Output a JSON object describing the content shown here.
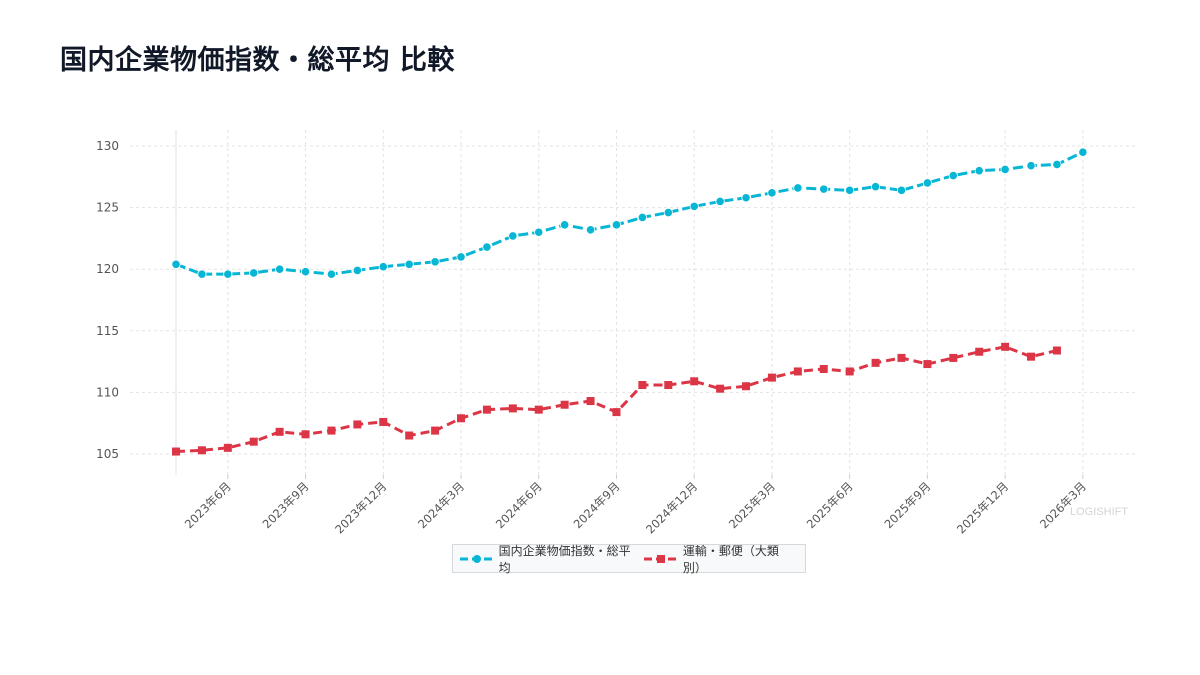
{
  "title": "国内企業物価指数・総平均 比較",
  "watermark": "LOGISHIFT",
  "chart_data": {
    "type": "line",
    "title": "国内企業物価指数・総平均 比較",
    "xlabel": "",
    "ylabel": "",
    "ylim": [
      103.5,
      131.3
    ],
    "yticks": [
      105,
      110,
      115,
      120,
      125,
      130
    ],
    "grid": true,
    "legend_position": "bottom",
    "x": [
      "2023-04",
      "2023-05",
      "2023-06",
      "2023-07",
      "2023-08",
      "2023-09",
      "2023-10",
      "2023-11",
      "2023-12",
      "2024-01",
      "2024-02",
      "2024-03",
      "2024-04",
      "2024-05",
      "2024-06",
      "2024-07",
      "2024-08",
      "2024-09",
      "2024-10",
      "2024-11",
      "2024-12",
      "2025-01",
      "2025-02",
      "2025-03",
      "2025-04",
      "2025-05",
      "2025-06",
      "2025-07",
      "2025-08",
      "2025-09",
      "2025-10",
      "2025-11",
      "2025-12",
      "2026-01",
      "2026-02",
      "2026-03"
    ],
    "xtick_labels": [
      "2023年6月",
      "2023年9月",
      "2023年12月",
      "2024年3月",
      "2024年6月",
      "2024年9月",
      "2024年12月",
      "2025年3月",
      "2025年6月",
      "2025年9月",
      "2025年12月",
      "2026年3月"
    ],
    "series": [
      {
        "name": "国内企業物価指数・総平均",
        "color": "#06b6d4",
        "marker": "circle",
        "values": [
          120.4,
          119.6,
          119.6,
          119.7,
          120.0,
          119.8,
          119.6,
          119.9,
          120.2,
          120.4,
          120.6,
          121.0,
          121.8,
          122.7,
          123.0,
          123.6,
          123.2,
          123.6,
          124.2,
          124.6,
          125.1,
          125.5,
          125.8,
          126.2,
          126.6,
          126.5,
          126.4,
          126.7,
          126.4,
          127.0,
          127.6,
          128.0,
          128.1,
          128.4,
          128.5,
          129.5
        ]
      },
      {
        "name": "運輸・郵便（大類別）",
        "color": "#dc3545",
        "marker": "square",
        "values": [
          105.2,
          105.3,
          105.5,
          106.0,
          106.8,
          106.6,
          106.9,
          107.4,
          107.6,
          106.5,
          106.9,
          107.9,
          108.6,
          108.7,
          108.6,
          109.0,
          109.3,
          108.4,
          110.6,
          110.6,
          110.9,
          110.3,
          110.5,
          111.2,
          111.7,
          111.9,
          111.7,
          112.4,
          112.8,
          112.3,
          112.8,
          113.3,
          113.7,
          112.9,
          113.4,
          null
        ]
      }
    ]
  }
}
